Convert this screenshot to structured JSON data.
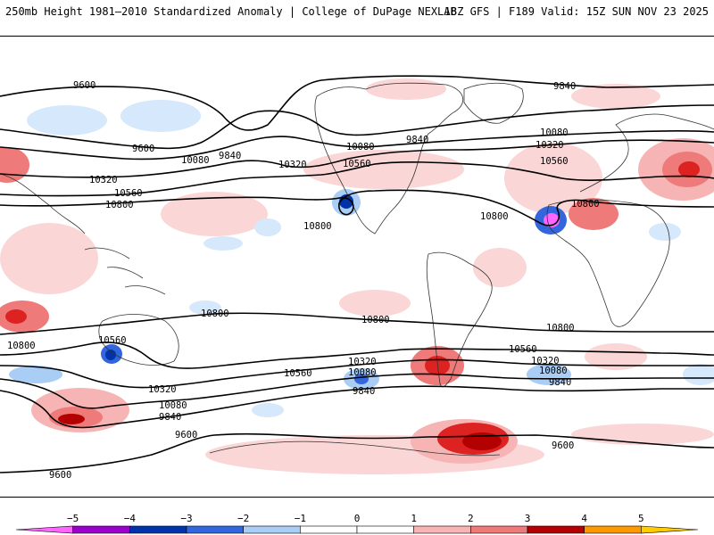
{
  "header": {
    "left": "250mb Height 1981–2010 Standardized Anomaly | College of DuPage NEXLAB",
    "right": "18Z GFS | F189 Valid: 15Z SUN NOV 23 2025"
  },
  "map": {
    "variable": "250mb geopotential height (m) with standardized anomaly shading",
    "contour_labels": [
      "9600",
      "9840",
      "10080",
      "10320",
      "10560",
      "10800"
    ],
    "colors": {
      "neg5": "#ff66ff",
      "neg4": "#9900cc",
      "neg3": "#0033aa",
      "neg2": "#3366dd",
      "neg1": "#a9cdf5",
      "neg05": "#d6e8fb",
      "pos05": "#fbd6d6",
      "pos1": "#f7b4b4",
      "pos2": "#ee7a7a",
      "pos3": "#dd2222",
      "pos4": "#b30000",
      "pos5": "#ff9900",
      "contour": "#000000",
      "coast": "#333333"
    }
  },
  "colorbar": {
    "ticks": [
      "−5",
      "−4",
      "−3",
      "−2",
      "−1",
      "0",
      "1",
      "2",
      "3",
      "4",
      "5"
    ],
    "segments": [
      "#ff66ff",
      "#9900cc",
      "#0033aa",
      "#3366dd",
      "#a9cdf5",
      "#ffffff",
      "#ffffff",
      "#f7b4b4",
      "#ee7a7a",
      "#b30000",
      "#ff9900",
      "#ffcc00"
    ]
  }
}
